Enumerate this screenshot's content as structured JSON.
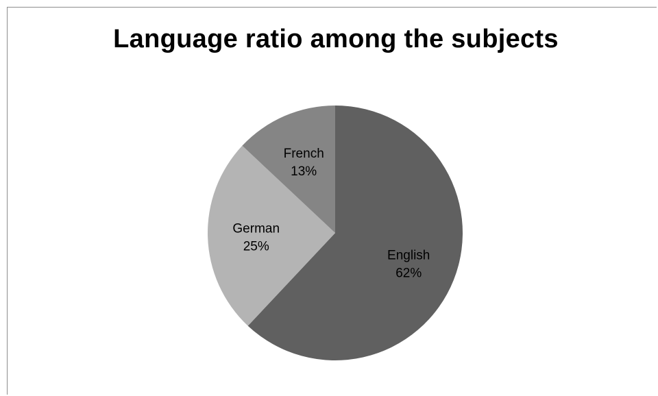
{
  "chart_data": {
    "type": "pie",
    "title": "Language ratio among the subjects",
    "categories": [
      "English",
      "German",
      "French"
    ],
    "values": [
      62,
      25,
      13
    ],
    "labels": [
      "62%",
      "25%",
      "13%"
    ],
    "colors": [
      "#606060",
      "#b4b4b4",
      "#858585"
    ],
    "legend": "none",
    "start_angle_deg": 0,
    "direction": "clockwise"
  }
}
